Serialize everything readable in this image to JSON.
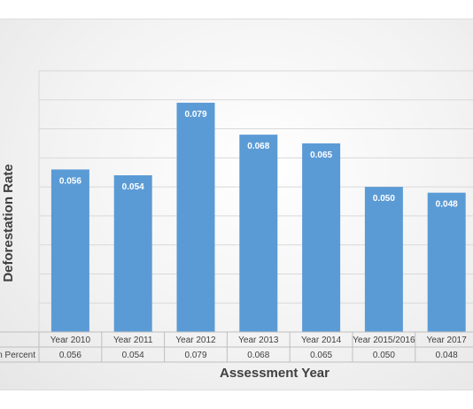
{
  "chart_data": {
    "type": "bar",
    "title": "",
    "xlabel": "Assessment Year",
    "ylabel": "Deforestation Rate",
    "categories": [
      "Year 2010",
      "Year 2011",
      "Year 2012",
      "Year 2013",
      "Year 2014",
      "Year 2015/2016",
      "Year 2017"
    ],
    "series": [
      {
        "name": "n Percent",
        "values": [
          0.056,
          0.054,
          0.079,
          0.068,
          0.065,
          0.05,
          0.048
        ],
        "labels": [
          "0.056",
          "0.054",
          "0.079",
          "0.068",
          "0.065",
          "0.050",
          "0.048"
        ]
      }
    ],
    "ylim": [
      0,
      0.09
    ],
    "grid": true,
    "data_table": true,
    "legend": "none",
    "colors": {
      "bar": "#5b9bd5"
    }
  }
}
